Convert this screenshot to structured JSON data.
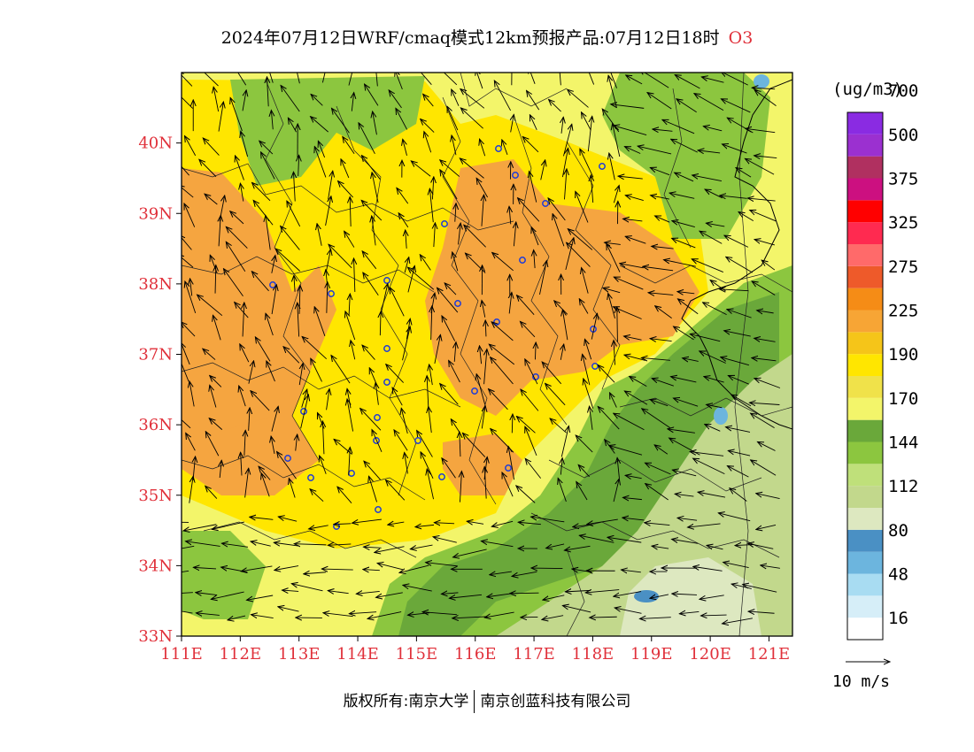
{
  "title": {
    "main": "2024年07月12日WRF/cmaq模式12km预报产品:07月12日18时",
    "species": "O3"
  },
  "colorbar": {
    "unit": "(ug/m3)",
    "colors": [
      "#ffffff",
      "#d6eef8",
      "#a8dcf2",
      "#6cb5de",
      "#4a90c4",
      "#dde8c0",
      "#c2d88c",
      "#bfe07a",
      "#8cc63f",
      "#6aa83a",
      "#f3f56a",
      "#f0e24a",
      "#ffe600",
      "#f5c519",
      "#f7a535",
      "#f58c16",
      "#ee5a2a",
      "#ff6a6a",
      "#ff2a50",
      "#ff0000",
      "#cc1080",
      "#b03060",
      "#9b30d0",
      "#8a2be2"
    ],
    "labels": [
      "16",
      "48",
      "80",
      "112",
      "144",
      "170",
      "190",
      "225",
      "275",
      "325",
      "375",
      "500",
      "700"
    ]
  },
  "map": {
    "lat_labels": [
      "33N",
      "34N",
      "35N",
      "36N",
      "37N",
      "38N",
      "39N",
      "40N"
    ],
    "lon_labels": [
      "111E",
      "112E",
      "113E",
      "114E",
      "115E",
      "116E",
      "117E",
      "118E",
      "119E",
      "120E",
      "121E"
    ],
    "label_color": "#e0303a",
    "lat_range": [
      33,
      41
    ],
    "lon_range": [
      111,
      121.4
    ]
  },
  "vector_scale": {
    "label": "10  m/s"
  },
  "footer": {
    "left": "版权所有:南京大学",
    "right": "南京创蓝科技有限公司"
  }
}
